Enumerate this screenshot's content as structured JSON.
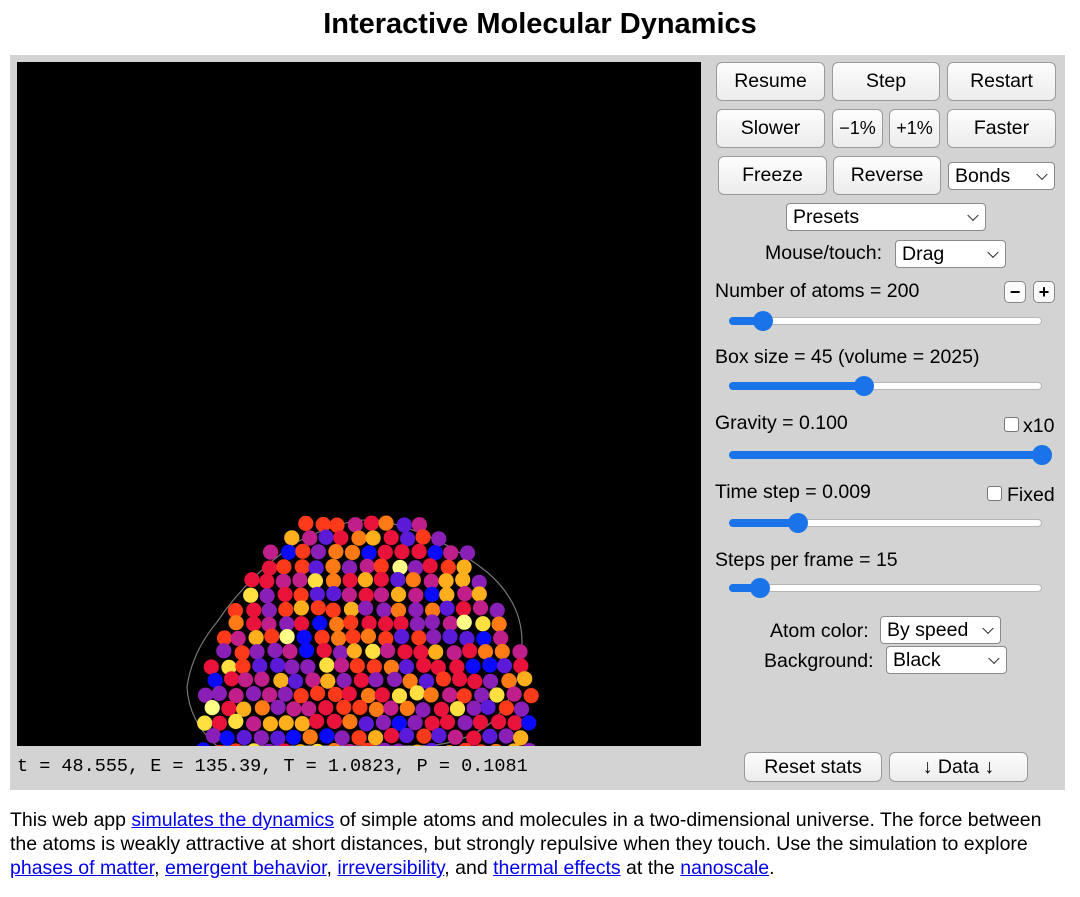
{
  "page": {
    "title": "Interactive Molecular Dynamics"
  },
  "stats": {
    "text": "t = 48.555, E = 135.39, T = 1.0823, P = 0.1081"
  },
  "buttons": {
    "resume": "Resume",
    "step": "Step",
    "restart": "Restart",
    "slower": "Slower",
    "minus1": "−1%",
    "plus1": "+1%",
    "faster": "Faster",
    "freeze": "Freeze",
    "reverse": "Reverse",
    "reset_stats": "Reset stats",
    "data": "↓ Data ↓",
    "atoms_minus": "−",
    "atoms_plus": "+"
  },
  "selects": {
    "bonds": "Bonds",
    "presets": "Presets",
    "mouse_touch": {
      "label": "Mouse/touch:",
      "value": "Drag"
    },
    "atom_color": {
      "label": "Atom color:",
      "value": "By speed"
    },
    "background": {
      "label": "Background:",
      "value": "Black"
    }
  },
  "sliders": {
    "atoms": {
      "label": "Number of atoms = 200",
      "level": 0.11
    },
    "box": {
      "label": "Box size = 45 (volume = 2025)",
      "level": 0.43
    },
    "gravity": {
      "label": "Gravity = 0.100",
      "level": 1.0,
      "checkbox_label": "x10",
      "checked": false
    },
    "timestep": {
      "label": "Time step = 0.009",
      "level": 0.22,
      "checkbox_label": "Fixed",
      "checked": false
    },
    "steps": {
      "label": "Steps per frame = 15",
      "level": 0.1
    }
  },
  "colors": {
    "slider_accent": "#1a73e8",
    "panel": "#d3d3d3",
    "canvas": "#000000",
    "atom_palette": [
      "#0a0aff",
      "#5a1ad8",
      "#8a1fb8",
      "#c01e8a",
      "#e8123a",
      "#ff3a1a",
      "#ff7a14",
      "#ffae1c",
      "#ffe040",
      "#ffff88"
    ]
  },
  "description": {
    "t1": "This web app ",
    "l1": "simulates the dynamics",
    "t2": " of simple atoms and molecules in a two-dimensional universe. The force between the atoms is weakly attractive at short distances, but strongly repulsive when they touch. Use the simulation to explore ",
    "l2": "phases of matter",
    "t3": ", ",
    "l3": "emergent behavior",
    "t4": ", ",
    "l4": "irreversibility",
    "t5": ", and ",
    "l5": "thermal effects",
    "t6": " at the ",
    "l6": "nanoscale",
    "t7": "."
  }
}
